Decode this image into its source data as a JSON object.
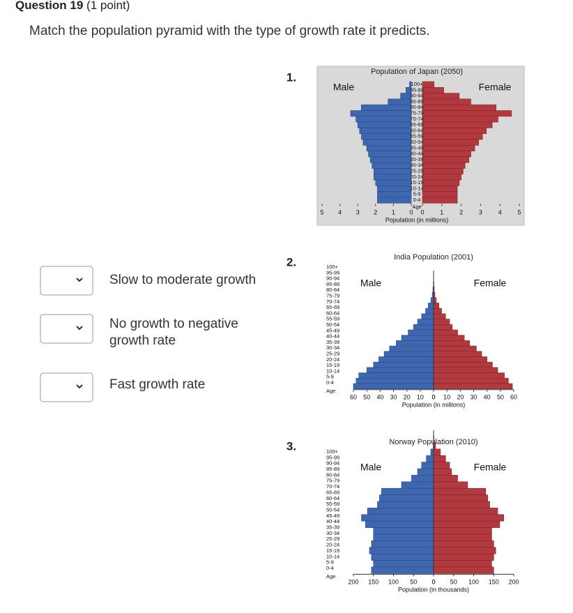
{
  "header": {
    "title": "Question 19",
    "points": "(1 point)"
  },
  "prompt": "Match the population pyramid with the type of growth rate it predicts.",
  "answers": [
    {
      "line1": "Slow to moderate growth"
    },
    {
      "line1": "No growth to negative",
      "line2": "growth rate"
    },
    {
      "line1": "Fast growth rate"
    }
  ],
  "chart_data": [
    {
      "type": "pyramid",
      "number": "1.",
      "title": "Population of Japan (2050)",
      "xlabel": "Population (in millions)",
      "category_header": "Age",
      "categories": [
        "100+",
        "95-99",
        "90-94",
        "85-89",
        "80-84",
        "75-79",
        "70-74",
        "65-69",
        "60-64",
        "55-59",
        "50-54",
        "45-49",
        "40-44",
        "35-39",
        "30-34",
        "25-29",
        "20-24",
        "15-19",
        "10-14",
        "5-9",
        "0-4"
      ],
      "series": [
        {
          "name": "Male",
          "color": "#3f67b0",
          "values": [
            0.1,
            0.3,
            0.6,
            1.3,
            2.8,
            3.4,
            3.1,
            3.0,
            2.9,
            2.8,
            2.7,
            2.5,
            2.4,
            2.3,
            2.2,
            2.1,
            2.1,
            2.0,
            1.9,
            1.9,
            1.9
          ]
        },
        {
          "name": "Female",
          "color": "#b23a3e",
          "values": [
            0.6,
            1.1,
            1.9,
            2.5,
            3.8,
            4.6,
            3.9,
            3.6,
            3.3,
            3.1,
            2.9,
            2.7,
            2.5,
            2.4,
            2.2,
            2.1,
            2.0,
            1.9,
            1.8,
            1.8,
            1.8
          ]
        }
      ],
      "xlim": [
        0,
        5
      ],
      "xticks": [
        0,
        1,
        2,
        3,
        4,
        5
      ],
      "background": "#d9d9d9"
    },
    {
      "type": "pyramid",
      "number": "2.",
      "title": "India Population (2001)",
      "xlabel": "Population (in millions)",
      "category_header": "Age",
      "categories": [
        "100+",
        "95-99",
        "90-94",
        "85-89",
        "80-84",
        "75-79",
        "70-74",
        "65-69",
        "60-64",
        "55-59",
        "50-54",
        "45-49",
        "40-44",
        "35-39",
        "30-34",
        "25-29",
        "20-24",
        "15-19",
        "10-14",
        "5-9",
        "0-4"
      ],
      "series": [
        {
          "name": "Male",
          "color": "#3f67b0",
          "values": [
            0.1,
            0.2,
            0.5,
            1,
            2,
            4,
            6,
            9,
            12,
            15,
            19,
            24,
            28,
            33,
            37,
            41,
            45,
            50,
            56,
            58,
            60
          ]
        },
        {
          "name": "Female",
          "color": "#b23a3e",
          "values": [
            0.1,
            0.2,
            0.5,
            1,
            2,
            4,
            6,
            9,
            12,
            14,
            18,
            23,
            27,
            32,
            36,
            40,
            44,
            48,
            53,
            56,
            59
          ]
        }
      ],
      "xlim": [
        0,
        60
      ],
      "xticks": [
        0,
        10,
        20,
        30,
        40,
        50,
        60
      ],
      "background": "#ffffff"
    },
    {
      "type": "pyramid",
      "number": "3.",
      "title": "Norway Population (2010)",
      "xlabel": "Population (in thousands)",
      "category_header": "Age",
      "categories": [
        "100+",
        "95-99",
        "90-94",
        "85-89",
        "80-84",
        "75-79",
        "70-74",
        "65-69",
        "60-64",
        "55-59",
        "50-54",
        "45-49",
        "40-44",
        "35-39",
        "30-34",
        "25-29",
        "20-24",
        "15-19",
        "10-14",
        "5-9",
        "0-4"
      ],
      "series": [
        {
          "name": "Male",
          "color": "#3f67b0",
          "values": [
            0.1,
            1,
            7,
            18,
            30,
            40,
            55,
            80,
            130,
            135,
            140,
            165,
            180,
            170,
            150,
            150,
            155,
            160,
            155,
            150,
            155
          ]
        },
        {
          "name": "Female",
          "color": "#b23a3e",
          "values": [
            1,
            5,
            17,
            30,
            40,
            45,
            60,
            85,
            130,
            135,
            140,
            160,
            175,
            165,
            145,
            145,
            150,
            155,
            150,
            145,
            150
          ]
        }
      ],
      "xlim": [
        0,
        200
      ],
      "xticks": [
        0,
        50,
        100,
        150,
        200
      ],
      "background": "#ffffff"
    }
  ]
}
